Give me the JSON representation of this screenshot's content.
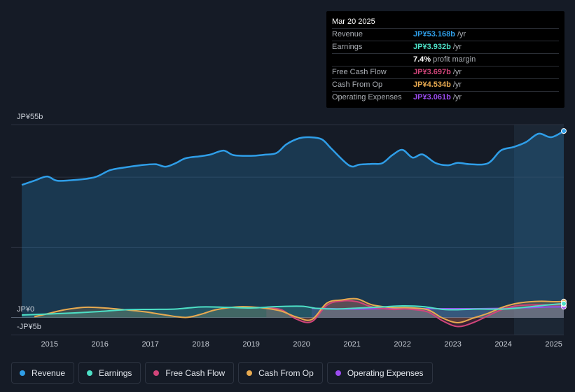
{
  "chart_data": {
    "type": "area",
    "y_labels": {
      "top": "JP¥55b",
      "zero": "JP¥0",
      "bottom": "-JP¥5b"
    },
    "ylim": [
      -5,
      55
    ],
    "xlim": [
      2014.45,
      2025.2
    ],
    "x_ticks": [
      "2015",
      "2016",
      "2017",
      "2018",
      "2019",
      "2020",
      "2021",
      "2022",
      "2023",
      "2024",
      "2025"
    ],
    "series": [
      {
        "name": "Revenue",
        "color": "#2f9ee8",
        "points": [
          [
            2014.45,
            37.8
          ],
          [
            2014.7,
            39.0
          ],
          [
            2014.95,
            40.2
          ],
          [
            2015.15,
            39.0
          ],
          [
            2015.5,
            39.2
          ],
          [
            2015.9,
            40.0
          ],
          [
            2016.2,
            42.0
          ],
          [
            2016.5,
            42.8
          ],
          [
            2016.8,
            43.4
          ],
          [
            2017.1,
            43.7
          ],
          [
            2017.3,
            43.0
          ],
          [
            2017.5,
            44.0
          ],
          [
            2017.7,
            45.4
          ],
          [
            2018.0,
            46.0
          ],
          [
            2018.2,
            46.5
          ],
          [
            2018.45,
            47.6
          ],
          [
            2018.65,
            46.3
          ],
          [
            2019.0,
            46.1
          ],
          [
            2019.25,
            46.4
          ],
          [
            2019.5,
            46.9
          ],
          [
            2019.7,
            49.4
          ],
          [
            2019.95,
            51.1
          ],
          [
            2020.15,
            51.4
          ],
          [
            2020.4,
            50.8
          ],
          [
            2020.6,
            48.0
          ],
          [
            2020.95,
            43.3
          ],
          [
            2021.15,
            43.6
          ],
          [
            2021.4,
            43.8
          ],
          [
            2021.6,
            44.0
          ],
          [
            2021.8,
            46.3
          ],
          [
            2022.0,
            47.8
          ],
          [
            2022.2,
            45.6
          ],
          [
            2022.4,
            46.5
          ],
          [
            2022.65,
            44.1
          ],
          [
            2022.9,
            43.4
          ],
          [
            2023.1,
            44.1
          ],
          [
            2023.35,
            43.7
          ],
          [
            2023.7,
            44.0
          ],
          [
            2023.95,
            47.6
          ],
          [
            2024.2,
            48.6
          ],
          [
            2024.45,
            50.0
          ],
          [
            2024.7,
            52.4
          ],
          [
            2024.95,
            51.4
          ],
          [
            2025.2,
            53.168
          ]
        ]
      },
      {
        "name": "Earnings",
        "color": "#4de0c6",
        "points": [
          [
            2014.45,
            0.7
          ],
          [
            2015.0,
            1.0
          ],
          [
            2015.5,
            1.3
          ],
          [
            2016.0,
            1.7
          ],
          [
            2016.5,
            2.2
          ],
          [
            2017.0,
            2.3
          ],
          [
            2017.5,
            2.4
          ],
          [
            2018.0,
            3.0
          ],
          [
            2018.5,
            2.9
          ],
          [
            2019.0,
            2.7
          ],
          [
            2019.5,
            3.1
          ],
          [
            2020.0,
            3.2
          ],
          [
            2020.3,
            2.6
          ],
          [
            2020.7,
            2.4
          ],
          [
            2021.0,
            2.6
          ],
          [
            2021.3,
            2.8
          ],
          [
            2021.6,
            3.0
          ],
          [
            2022.0,
            3.3
          ],
          [
            2022.4,
            3.1
          ],
          [
            2022.8,
            2.3
          ],
          [
            2023.1,
            2.2
          ],
          [
            2023.5,
            2.4
          ],
          [
            2024.0,
            2.4
          ],
          [
            2024.5,
            3.0
          ],
          [
            2024.9,
            3.6
          ],
          [
            2025.2,
            3.932
          ]
        ]
      },
      {
        "name": "Free Cash Flow",
        "color": "#d1457a",
        "points": [
          [
            2019.3,
            2.7
          ],
          [
            2019.6,
            2.2
          ],
          [
            2019.9,
            -0.5
          ],
          [
            2020.2,
            -1.2
          ],
          [
            2020.5,
            3.5
          ],
          [
            2020.8,
            4.7
          ],
          [
            2021.1,
            4.5
          ],
          [
            2021.4,
            3.0
          ],
          [
            2021.8,
            2.3
          ],
          [
            2022.1,
            2.4
          ],
          [
            2022.5,
            1.6
          ],
          [
            2022.8,
            -1.0
          ],
          [
            2023.1,
            -2.6
          ],
          [
            2023.4,
            -1.5
          ],
          [
            2023.7,
            0.5
          ],
          [
            2024.0,
            2.4
          ],
          [
            2024.3,
            3.4
          ],
          [
            2024.7,
            3.6
          ],
          [
            2025.0,
            3.6
          ],
          [
            2025.2,
            3.697
          ]
        ]
      },
      {
        "name": "Cash From Op",
        "color": "#e8aa50",
        "points": [
          [
            2014.7,
            0.2
          ],
          [
            2015.0,
            1.2
          ],
          [
            2015.3,
            2.2
          ],
          [
            2015.7,
            2.9
          ],
          [
            2016.1,
            2.7
          ],
          [
            2016.5,
            2.2
          ],
          [
            2016.9,
            1.6
          ],
          [
            2017.3,
            0.7
          ],
          [
            2017.7,
            0.0
          ],
          [
            2018.0,
            0.9
          ],
          [
            2018.3,
            2.2
          ],
          [
            2018.7,
            3.0
          ],
          [
            2019.0,
            3.0
          ],
          [
            2019.3,
            2.6
          ],
          [
            2019.6,
            1.8
          ],
          [
            2019.9,
            0.1
          ],
          [
            2020.2,
            -0.6
          ],
          [
            2020.5,
            4.1
          ],
          [
            2020.8,
            5.0
          ],
          [
            2021.1,
            5.3
          ],
          [
            2021.4,
            3.6
          ],
          [
            2021.8,
            2.8
          ],
          [
            2022.1,
            2.8
          ],
          [
            2022.5,
            2.2
          ],
          [
            2022.8,
            -0.2
          ],
          [
            2023.1,
            -1.5
          ],
          [
            2023.4,
            -0.2
          ],
          [
            2023.7,
            1.2
          ],
          [
            2024.0,
            3.0
          ],
          [
            2024.3,
            4.1
          ],
          [
            2024.7,
            4.6
          ],
          [
            2025.0,
            4.5
          ],
          [
            2025.2,
            4.534
          ]
        ]
      },
      {
        "name": "Operating Expenses",
        "color": "#9b4cf0",
        "points": [
          [
            2020.2,
            2.6
          ],
          [
            2020.6,
            2.5
          ],
          [
            2021.0,
            2.4
          ],
          [
            2021.5,
            2.5
          ],
          [
            2022.0,
            2.6
          ],
          [
            2022.5,
            2.5
          ],
          [
            2023.0,
            2.5
          ],
          [
            2023.5,
            2.5
          ],
          [
            2024.0,
            2.6
          ],
          [
            2024.5,
            2.8
          ],
          [
            2024.9,
            3.0
          ],
          [
            2025.2,
            3.061
          ]
        ]
      }
    ]
  },
  "tooltip": {
    "date": "Mar 20 2025",
    "rows": [
      {
        "label": "Revenue",
        "value": "JP¥53.168b",
        "unit": "/yr",
        "color": "#2f9ee8"
      },
      {
        "label": "Earnings",
        "value": "JP¥3.932b",
        "unit": "/yr",
        "color": "#4de0c6"
      },
      {
        "label": "",
        "value": "7.4%",
        "unit": "profit margin",
        "color": "#ffffff"
      },
      {
        "label": "Free Cash Flow",
        "value": "JP¥3.697b",
        "unit": "/yr",
        "color": "#d1457a"
      },
      {
        "label": "Cash From Op",
        "value": "JP¥4.534b",
        "unit": "/yr",
        "color": "#e8aa50"
      },
      {
        "label": "Operating Expenses",
        "value": "JP¥3.061b",
        "unit": "/yr",
        "color": "#9b4cf0"
      }
    ]
  },
  "legend": [
    {
      "label": "Revenue",
      "color": "#2f9ee8"
    },
    {
      "label": "Earnings",
      "color": "#4de0c6"
    },
    {
      "label": "Free Cash Flow",
      "color": "#d1457a"
    },
    {
      "label": "Cash From Op",
      "color": "#e8aa50"
    },
    {
      "label": "Operating Expenses",
      "color": "#9b4cf0"
    }
  ]
}
